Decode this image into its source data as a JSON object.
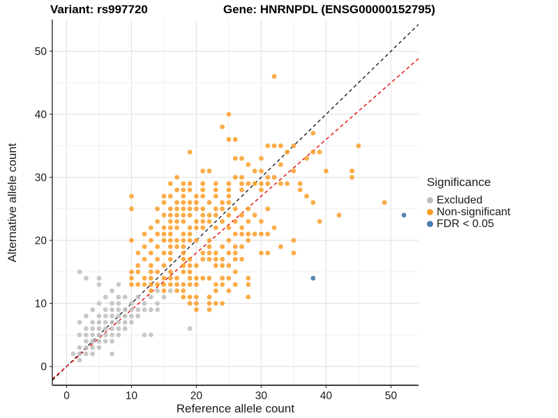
{
  "chart_data": {
    "type": "scatter",
    "title_left": "Variant: rs997720",
    "title_right": "Gene: HNRNPDL (ENSG00000152795)",
    "xlabel": "Reference allele count",
    "ylabel": "Alternative allele count",
    "xlim": [
      -2.2,
      54.2
    ],
    "ylim": [
      -2.6,
      55.0
    ],
    "x_ticks": [
      0,
      10,
      20,
      30,
      40,
      50
    ],
    "y_ticks": [
      0,
      10,
      20,
      30,
      40,
      50
    ],
    "grid_interval": 5,
    "grid_on": true,
    "legend": {
      "title": "Significance",
      "position": "right",
      "items": [
        {
          "label": "Excluded",
          "color": "#BEBEBE"
        },
        {
          "label": "Non-significant",
          "color": "#FA9D28"
        },
        {
          "label": "FDR < 0.05",
          "color": "#4E7EAE"
        }
      ]
    },
    "lines": [
      {
        "name": "identity-line",
        "slope": 1.0,
        "intercept": 0.0,
        "color": "#1a1a1a",
        "dash": "5,4"
      },
      {
        "name": "fit-line",
        "slope": 0.9,
        "intercept": 0.0,
        "color": "#E50000",
        "dash": "5,4"
      }
    ],
    "series": [
      {
        "name": "Excluded",
        "color": "#BEBEBE",
        "opacity": 0.85,
        "points": [
          [
            1,
            2
          ],
          [
            2,
            1
          ],
          [
            2,
            2
          ],
          [
            2,
            3
          ],
          [
            2,
            5
          ],
          [
            2,
            7
          ],
          [
            2,
            15
          ],
          [
            3,
            2
          ],
          [
            3,
            3
          ],
          [
            3,
            4
          ],
          [
            3,
            5
          ],
          [
            3,
            6
          ],
          [
            3,
            8
          ],
          [
            3,
            14
          ],
          [
            4,
            2
          ],
          [
            4,
            3
          ],
          [
            4,
            4
          ],
          [
            4,
            5
          ],
          [
            4,
            6
          ],
          [
            4,
            7
          ],
          [
            4,
            9
          ],
          [
            5,
            3
          ],
          [
            5,
            4
          ],
          [
            5,
            5
          ],
          [
            5,
            6
          ],
          [
            5,
            7
          ],
          [
            5,
            8
          ],
          [
            5,
            10
          ],
          [
            5,
            13
          ],
          [
            5,
            14
          ],
          [
            6,
            4
          ],
          [
            6,
            5
          ],
          [
            6,
            6
          ],
          [
            6,
            7
          ],
          [
            6,
            8
          ],
          [
            6,
            9
          ],
          [
            6,
            11
          ],
          [
            7,
            2
          ],
          [
            7,
            4
          ],
          [
            7,
            5
          ],
          [
            7,
            6
          ],
          [
            7,
            7
          ],
          [
            7,
            8
          ],
          [
            7,
            9
          ],
          [
            7,
            10
          ],
          [
            7,
            12
          ],
          [
            8,
            5
          ],
          [
            8,
            6
          ],
          [
            8,
            7
          ],
          [
            8,
            8
          ],
          [
            8,
            9
          ],
          [
            8,
            10
          ],
          [
            8,
            11
          ],
          [
            8,
            13
          ],
          [
            9,
            6
          ],
          [
            9,
            7
          ],
          [
            9,
            8
          ],
          [
            9,
            9
          ],
          [
            9,
            11
          ],
          [
            10,
            7
          ],
          [
            10,
            8
          ],
          [
            10,
            9
          ],
          [
            10,
            10
          ],
          [
            11,
            8
          ],
          [
            11,
            9
          ],
          [
            11,
            11
          ],
          [
            12,
            5
          ],
          [
            12,
            9
          ],
          [
            12,
            10
          ],
          [
            13,
            5
          ],
          [
            13,
            9
          ],
          [
            13,
            11
          ],
          [
            14,
            9
          ],
          [
            14,
            10
          ],
          [
            14,
            12
          ],
          [
            15,
            11
          ],
          [
            16,
            12
          ],
          [
            19,
            6
          ]
        ]
      },
      {
        "name": "Non-significant",
        "color": "#FA9D28",
        "opacity": 0.85,
        "points": [
          [
            20,
            9
          ],
          [
            22,
            9
          ],
          [
            19,
            10
          ],
          [
            20,
            10
          ],
          [
            22,
            10
          ],
          [
            23,
            10
          ],
          [
            24,
            10
          ],
          [
            18,
            11
          ],
          [
            19,
            11
          ],
          [
            20,
            11
          ],
          [
            22,
            11
          ],
          [
            28,
            11
          ],
          [
            13,
            12
          ],
          [
            15,
            12
          ],
          [
            17,
            12
          ],
          [
            18,
            12
          ],
          [
            23,
            12
          ],
          [
            25,
            12
          ],
          [
            10,
            13
          ],
          [
            11,
            13
          ],
          [
            12,
            13
          ],
          [
            13,
            13
          ],
          [
            14,
            13
          ],
          [
            15,
            13
          ],
          [
            16,
            13
          ],
          [
            17,
            13
          ],
          [
            18,
            13
          ],
          [
            19,
            13
          ],
          [
            20,
            13
          ],
          [
            23,
            13
          ],
          [
            24,
            13
          ],
          [
            26,
            13
          ],
          [
            28,
            13
          ],
          [
            10,
            14
          ],
          [
            12,
            14
          ],
          [
            13,
            14
          ],
          [
            15,
            14
          ],
          [
            16,
            14
          ],
          [
            17,
            14
          ],
          [
            19,
            14
          ],
          [
            20,
            14
          ],
          [
            21,
            14
          ],
          [
            22,
            14
          ],
          [
            24,
            14
          ],
          [
            25,
            14
          ],
          [
            28,
            14
          ],
          [
            10,
            15
          ],
          [
            11,
            15
          ],
          [
            13,
            15
          ],
          [
            14,
            15
          ],
          [
            16,
            15
          ],
          [
            18,
            15
          ],
          [
            19,
            15
          ],
          [
            26,
            15
          ],
          [
            11,
            16
          ],
          [
            13,
            16
          ],
          [
            15,
            16
          ],
          [
            18,
            16
          ],
          [
            19,
            16
          ],
          [
            20,
            16
          ],
          [
            23,
            16
          ],
          [
            24,
            16
          ],
          [
            25,
            16
          ],
          [
            12,
            17
          ],
          [
            14,
            17
          ],
          [
            16,
            17
          ],
          [
            18,
            17
          ],
          [
            19,
            17
          ],
          [
            21,
            17
          ],
          [
            22,
            17
          ],
          [
            23,
            17
          ],
          [
            24,
            17
          ],
          [
            26,
            17
          ],
          [
            27,
            17
          ],
          [
            11,
            18
          ],
          [
            13,
            18
          ],
          [
            15,
            18
          ],
          [
            16,
            18
          ],
          [
            18,
            18
          ],
          [
            21,
            18
          ],
          [
            22,
            18
          ],
          [
            23,
            18
          ],
          [
            25,
            18
          ],
          [
            26,
            18
          ],
          [
            30,
            18
          ],
          [
            31,
            18
          ],
          [
            35,
            18
          ],
          [
            12,
            19
          ],
          [
            14,
            19
          ],
          [
            16,
            19
          ],
          [
            17,
            19
          ],
          [
            18,
            19
          ],
          [
            22,
            19
          ],
          [
            24,
            19
          ],
          [
            26,
            19
          ],
          [
            27,
            19
          ],
          [
            33,
            19
          ],
          [
            10,
            20
          ],
          [
            13,
            20
          ],
          [
            15,
            20
          ],
          [
            16,
            20
          ],
          [
            17,
            20
          ],
          [
            18,
            20
          ],
          [
            19,
            20
          ],
          [
            20,
            20
          ],
          [
            22,
            20
          ],
          [
            25,
            20
          ],
          [
            28,
            20
          ],
          [
            35,
            20
          ],
          [
            12,
            21
          ],
          [
            14,
            21
          ],
          [
            15,
            21
          ],
          [
            16,
            21
          ],
          [
            18,
            21
          ],
          [
            19,
            21
          ],
          [
            26,
            21
          ],
          [
            27,
            21
          ],
          [
            28,
            21
          ],
          [
            29,
            21
          ],
          [
            30,
            21
          ],
          [
            31,
            21
          ],
          [
            13,
            22
          ],
          [
            15,
            22
          ],
          [
            16,
            22
          ],
          [
            17,
            22
          ],
          [
            19,
            22
          ],
          [
            20,
            22
          ],
          [
            21,
            22
          ],
          [
            23,
            22
          ],
          [
            25,
            22
          ],
          [
            27,
            22
          ],
          [
            32,
            22
          ],
          [
            14,
            23
          ],
          [
            16,
            23
          ],
          [
            17,
            23
          ],
          [
            18,
            23
          ],
          [
            20,
            23
          ],
          [
            21,
            23
          ],
          [
            22,
            23
          ],
          [
            24,
            23
          ],
          [
            26,
            23
          ],
          [
            28,
            23
          ],
          [
            30,
            23
          ],
          [
            39,
            23
          ],
          [
            15,
            24
          ],
          [
            16,
            24
          ],
          [
            17,
            24
          ],
          [
            18,
            24
          ],
          [
            19,
            24
          ],
          [
            21,
            24
          ],
          [
            22,
            24
          ],
          [
            23,
            24
          ],
          [
            25,
            24
          ],
          [
            27,
            24
          ],
          [
            29,
            24
          ],
          [
            42,
            24
          ],
          [
            10,
            25
          ],
          [
            14,
            25
          ],
          [
            16,
            25
          ],
          [
            17,
            25
          ],
          [
            18,
            25
          ],
          [
            19,
            25
          ],
          [
            20,
            25
          ],
          [
            21,
            25
          ],
          [
            23,
            25
          ],
          [
            24,
            25
          ],
          [
            26,
            25
          ],
          [
            28,
            25
          ],
          [
            31,
            25
          ],
          [
            15,
            26
          ],
          [
            17,
            26
          ],
          [
            18,
            26
          ],
          [
            19,
            26
          ],
          [
            20,
            26
          ],
          [
            22,
            26
          ],
          [
            24,
            26
          ],
          [
            25,
            26
          ],
          [
            38,
            26
          ],
          [
            49,
            26
          ],
          [
            10,
            27
          ],
          [
            15,
            27
          ],
          [
            16,
            27
          ],
          [
            18,
            27
          ],
          [
            20,
            27
          ],
          [
            21,
            27
          ],
          [
            23,
            27
          ],
          [
            25,
            27
          ],
          [
            37,
            27
          ],
          [
            17,
            28
          ],
          [
            18,
            28
          ],
          [
            19,
            28
          ],
          [
            21,
            28
          ],
          [
            23,
            28
          ],
          [
            25,
            28
          ],
          [
            27,
            28
          ],
          [
            30,
            28
          ],
          [
            36,
            28
          ],
          [
            16,
            29
          ],
          [
            18,
            29
          ],
          [
            19,
            29
          ],
          [
            21,
            29
          ],
          [
            23,
            29
          ],
          [
            25,
            29
          ],
          [
            27,
            29
          ],
          [
            28,
            29
          ],
          [
            29,
            29
          ],
          [
            30,
            29
          ],
          [
            31,
            29
          ],
          [
            33,
            29
          ],
          [
            34,
            29
          ],
          [
            36,
            29
          ],
          [
            17,
            30
          ],
          [
            26,
            30
          ],
          [
            27,
            30
          ],
          [
            31,
            30
          ],
          [
            32,
            30
          ],
          [
            44,
            30
          ],
          [
            21,
            31
          ],
          [
            22,
            31
          ],
          [
            29,
            31
          ],
          [
            30,
            31
          ],
          [
            35,
            31
          ],
          [
            40,
            31
          ],
          [
            44,
            31
          ],
          [
            28,
            32
          ],
          [
            33,
            32
          ],
          [
            26,
            33
          ],
          [
            27,
            33
          ],
          [
            30,
            33
          ],
          [
            37,
            33
          ],
          [
            19,
            34
          ],
          [
            34,
            34
          ],
          [
            38,
            34
          ],
          [
            39,
            34
          ],
          [
            31,
            35
          ],
          [
            32,
            35
          ],
          [
            33,
            35
          ],
          [
            35,
            35
          ],
          [
            45,
            35
          ],
          [
            25,
            36
          ],
          [
            26,
            36
          ],
          [
            38,
            37
          ],
          [
            24,
            38
          ],
          [
            25,
            40
          ],
          [
            32,
            46
          ]
        ]
      },
      {
        "name": "FDR < 0.05",
        "color": "#4E7EAE",
        "opacity": 0.95,
        "points": [
          [
            38,
            14
          ],
          [
            52,
            24
          ]
        ]
      }
    ]
  }
}
